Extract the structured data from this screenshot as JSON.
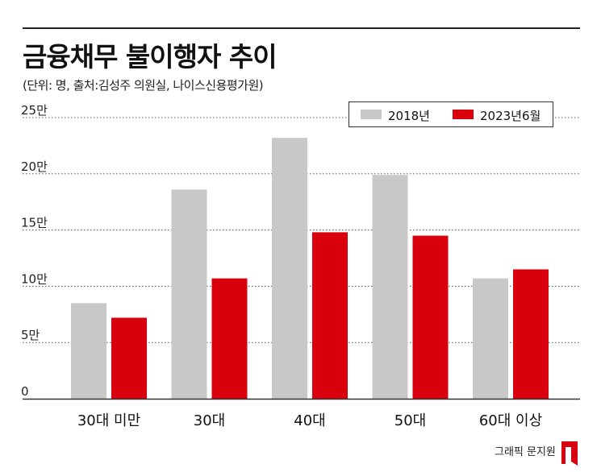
{
  "header": {
    "title": "금융채무 불이행자 추이",
    "subtitle": "(단위: 명, 출처:김성주 의원실, 나이스신용평가원)"
  },
  "legend": {
    "items": [
      {
        "label": "2018년",
        "color": "#c8c8c9"
      },
      {
        "label": "2023년6월",
        "color": "#d9000d"
      }
    ]
  },
  "credit": "그래픽 문지원",
  "colors": {
    "grey": "#c8c8c9",
    "red": "#d9000d",
    "axis": "#333333",
    "grid": "#555555"
  },
  "chart_data": {
    "type": "bar",
    "title": "금융채무 불이행자 추이",
    "subtitle": "(단위: 명, 출처:김성주 의원실, 나이스신용평가원)",
    "categories": [
      "30대 미만",
      "30대",
      "40대",
      "50대",
      "60대 이상"
    ],
    "series": [
      {
        "name": "2018년",
        "values": [
          85000,
          186000,
          232000,
          199000,
          107000
        ]
      },
      {
        "name": "2023년6월",
        "values": [
          72000,
          107000,
          148000,
          145000,
          115000
        ]
      }
    ],
    "ylim": [
      0,
      250000
    ],
    "yticks": [
      0,
      50000,
      100000,
      150000,
      200000,
      250000
    ],
    "ytick_labels": [
      "0",
      "5만",
      "10만",
      "15만",
      "20만",
      "25만"
    ],
    "grid": true,
    "legend_position": "top-right"
  }
}
